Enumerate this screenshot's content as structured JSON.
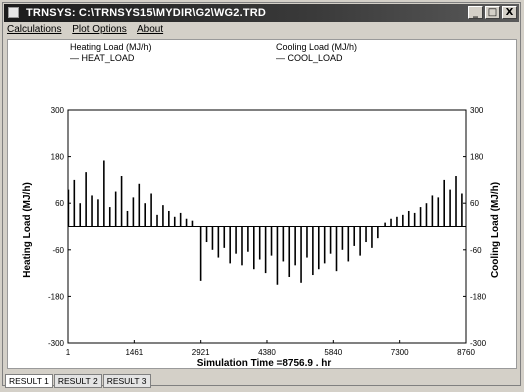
{
  "window": {
    "title": "TRNSYS: C:\\TRNSYS15\\MYDIR\\G2\\WG2.TRD",
    "buttons": [
      "_",
      "□",
      "X"
    ]
  },
  "menu": {
    "calculations": "Calculations",
    "plot_options": "Plot Options",
    "about": "About"
  },
  "legend": {
    "heating_title": "Heating Load (MJ/h)",
    "heating_entry": "— HEAT_LOAD",
    "cooling_title": "Cooling Load (MJ/h)",
    "cooling_entry": "— COOL_LOAD"
  },
  "chart_data": {
    "type": "bar",
    "xlabel": "Simulation Time =8756.9 . hr",
    "y_left_label": "Heating Load (MJ/h)",
    "y_right_label": "Cooling Load (MJ/h)",
    "xlim": [
      1,
      8760
    ],
    "ylim": [
      -300,
      300
    ],
    "x_ticks": [
      "1",
      "1461",
      "2921",
      "4380",
      "5840",
      "7300",
      "8760"
    ],
    "y_left_ticks": [
      "300",
      "180",
      "60",
      "-60",
      "-180",
      "-300"
    ],
    "y_right_ticks": [
      "300",
      "180",
      "60",
      "-60",
      "-180",
      "-300"
    ],
    "series": [
      {
        "name": "HEAT_LOAD",
        "color": "#000000",
        "x": [
          10,
          140,
          270,
          400,
          530,
          660,
          790,
          920,
          1050,
          1180,
          1310,
          1440,
          1570,
          1700,
          1830,
          1960,
          2090,
          2220,
          2350,
          2480,
          2610,
          2740,
          6980,
          7110,
          7240,
          7370,
          7500,
          7630,
          7760,
          7890,
          8020,
          8150,
          8280,
          8410,
          8540,
          8670
        ],
        "values": [
          95,
          120,
          60,
          140,
          80,
          70,
          170,
          50,
          90,
          130,
          40,
          75,
          110,
          60,
          85,
          30,
          55,
          40,
          25,
          35,
          20,
          15,
          10,
          20,
          25,
          30,
          40,
          35,
          50,
          60,
          80,
          75,
          120,
          95,
          130,
          85
        ]
      },
      {
        "name": "COOL_LOAD",
        "color": "#000000",
        "x": [
          2920,
          3050,
          3180,
          3310,
          3440,
          3570,
          3700,
          3830,
          3960,
          4090,
          4220,
          4350,
          4480,
          4610,
          4740,
          4870,
          5000,
          5130,
          5260,
          5390,
          5520,
          5650,
          5780,
          5910,
          6040,
          6170,
          6300,
          6430,
          6560,
          6690,
          6820
        ],
        "values": [
          -140,
          -40,
          -60,
          -80,
          -55,
          -95,
          -70,
          -100,
          -65,
          -110,
          -85,
          -120,
          -75,
          -150,
          -90,
          -130,
          -100,
          -145,
          -80,
          -125,
          -110,
          -95,
          -70,
          -115,
          -60,
          -90,
          -50,
          -75,
          -40,
          -55,
          -30
        ]
      }
    ]
  },
  "tabs": [
    "RESULT 1",
    "RESULT 2",
    "RESULT 3"
  ]
}
